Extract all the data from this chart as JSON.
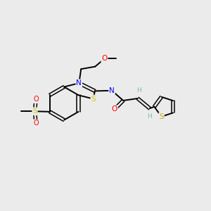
{
  "background_color": "#ebebeb",
  "bond_color": "#000000",
  "N_color": "#0000ff",
  "S_color": "#cccc00",
  "O_color": "#ff0000",
  "H_color": "#7ab8b8",
  "S_thio_color": "#b8b800",
  "figsize": [
    3.0,
    3.0
  ],
  "dpi": 100,
  "xlim": [
    0,
    10
  ],
  "ylim": [
    0,
    10
  ]
}
